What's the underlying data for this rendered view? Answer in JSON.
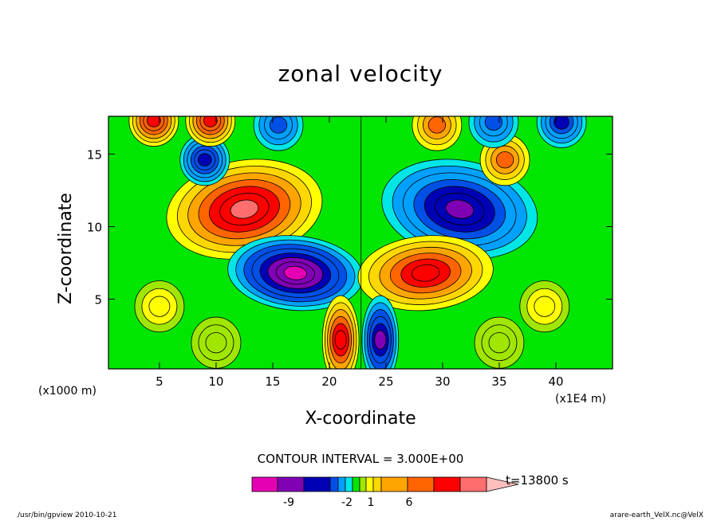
{
  "chart_data": {
    "type": "heatmap",
    "title": "zonal velocity",
    "xlabel": "X-coordinate",
    "ylabel": "Z-coordinate",
    "x_unit": "(x1000 m)",
    "x_scale_note": "(x1E4 m)",
    "xlim": [
      0.5,
      45
    ],
    "ylim": [
      0.2,
      17.6
    ],
    "x_ticks": [
      "5",
      "10",
      "15",
      "20",
      "25",
      "30",
      "35",
      "40"
    ],
    "y_ticks": [
      "5",
      "10",
      "15"
    ],
    "x_tick_values": [
      5,
      10,
      15,
      20,
      25,
      30,
      35,
      40
    ],
    "y_tick_values": [
      5,
      10,
      15
    ],
    "contour_interval_label": "CONTOUR INTERVAL = 3.000E+00",
    "time_label": "t=13800 s",
    "colorbar": {
      "colors": [
        "#e600b4",
        "#8000b4",
        "#0000b4",
        "#0050e6",
        "#00a0ff",
        "#00e6e6",
        "#00e600",
        "#a0e600",
        "#ffff00",
        "#ffd700",
        "#ffa500",
        "#ff6400",
        "#ff0000",
        "#ff6e6e",
        "#ffbebe"
      ],
      "tick_labels": [
        "-9",
        "-2",
        "1",
        "6"
      ],
      "tick_values": [
        -9,
        -2,
        1,
        6
      ]
    },
    "features": [
      {
        "x": 12.5,
        "z": 11.2,
        "value": 9
      },
      {
        "x": 31.5,
        "z": 11.2,
        "value": -9
      },
      {
        "x": 17.0,
        "z": 6.8,
        "value": -11
      },
      {
        "x": 28.5,
        "z": 6.8,
        "value": 8
      },
      {
        "x": 21.0,
        "z": 2.2,
        "value": 8
      },
      {
        "x": 24.5,
        "z": 2.2,
        "value": -8
      },
      {
        "x": 9.0,
        "z": 14.6,
        "value": -7
      },
      {
        "x": 35.5,
        "z": 14.6,
        "value": 5
      },
      {
        "x": 4.5,
        "z": 17.3,
        "value": 7
      },
      {
        "x": 9.5,
        "z": 17.3,
        "value": 7
      },
      {
        "x": 15.5,
        "z": 17.0,
        "value": -5
      },
      {
        "x": 29.5,
        "z": 17.0,
        "value": 5
      },
      {
        "x": 34.5,
        "z": 17.2,
        "value": -5
      },
      {
        "x": 40.5,
        "z": 17.2,
        "value": -6
      },
      {
        "x": 5.0,
        "z": 4.5,
        "value": 2
      },
      {
        "x": 39.0,
        "z": 4.5,
        "value": 2
      },
      {
        "x": 35.0,
        "z": 2.0,
        "value": 1
      },
      {
        "x": 10.0,
        "z": 2.0,
        "value": 1
      }
    ]
  },
  "footer": {
    "left": "/usr/bin/gpview  2010-10-21",
    "right": "arare-earth_VelX.nc@VelX"
  }
}
